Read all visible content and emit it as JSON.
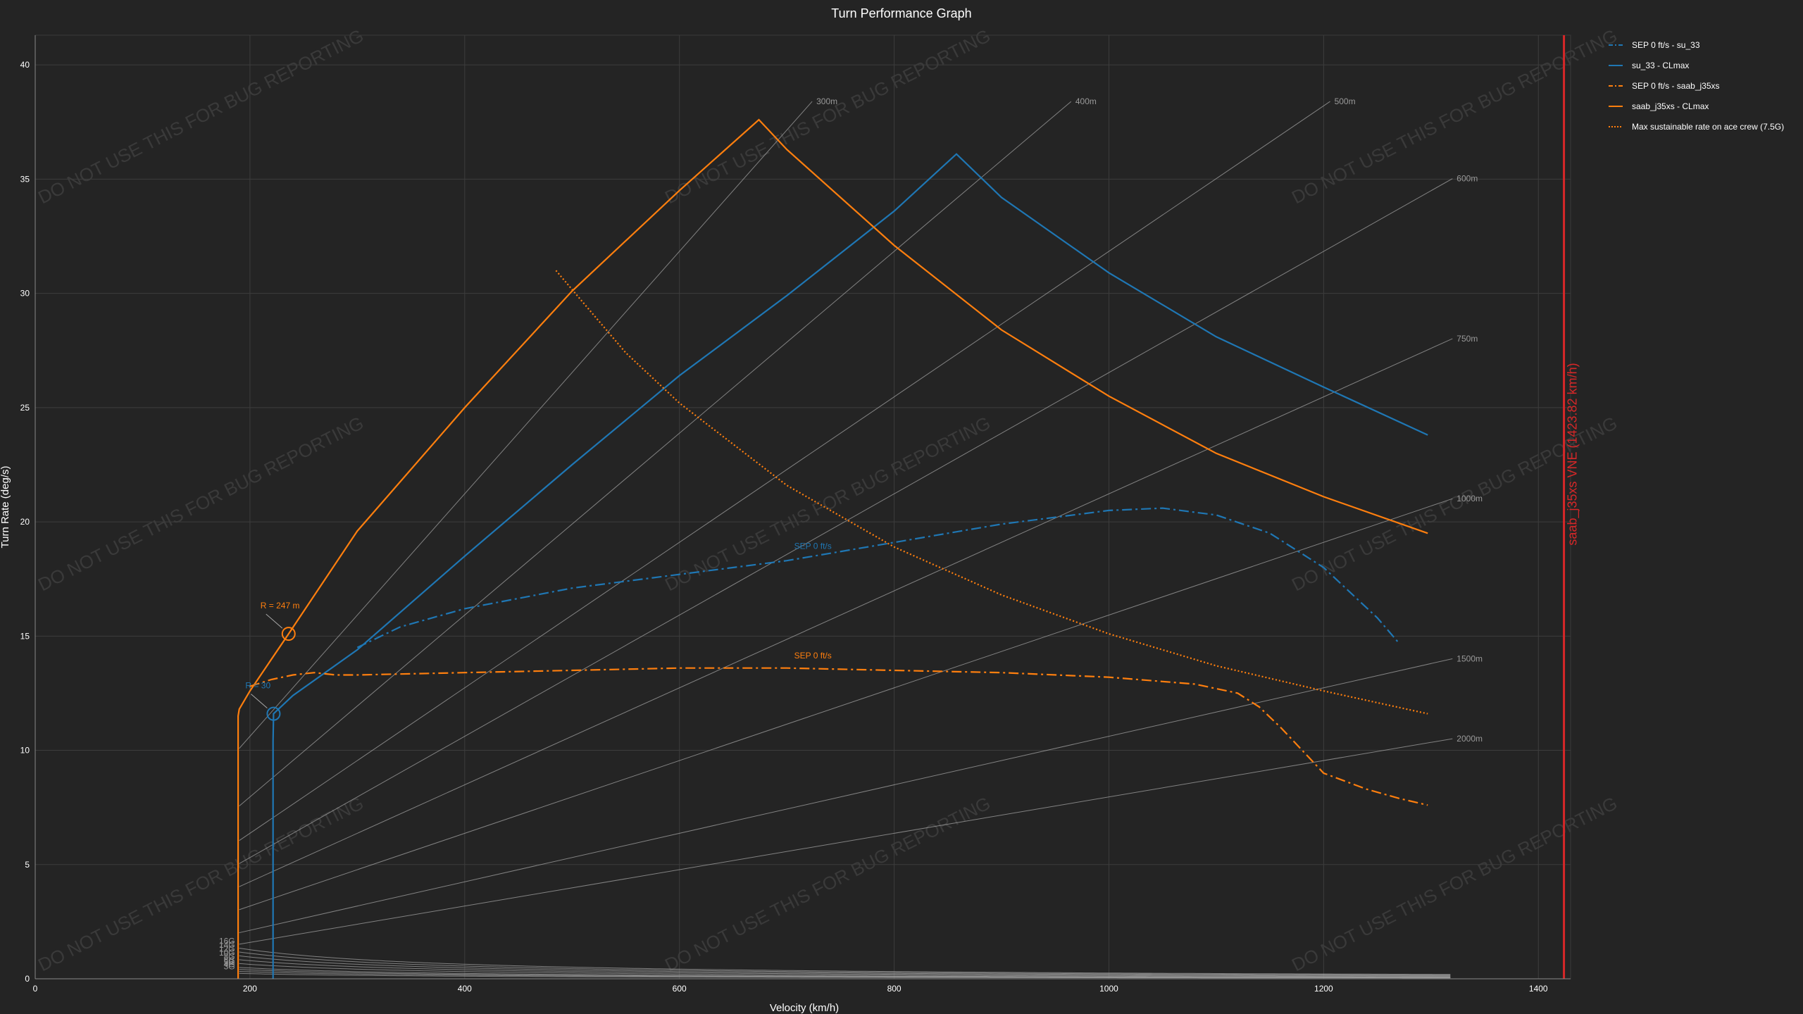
{
  "chart_data": {
    "type": "line",
    "title": "Turn Performance Graph",
    "xlabel": "Velocity (km/h)",
    "ylabel": "Turn Rate (deg/s)",
    "xlim": [
      0,
      1430
    ],
    "ylim": [
      0,
      41.3
    ],
    "xticks": [
      "0",
      "200",
      "400",
      "600",
      "800",
      "1000",
      "1200",
      "1400"
    ],
    "yticks": [
      "0",
      "5",
      "10",
      "15",
      "20",
      "25",
      "30",
      "35",
      "40"
    ],
    "grid": true,
    "legend_position": "top-right",
    "colors": {
      "su33": "#1f77b4",
      "saab": "#ff7f0e",
      "vne": "#d62728",
      "guide": "#aaaaaa"
    },
    "series": [
      {
        "name": "SEP 0 ft/s - su_33",
        "style": "dashdot",
        "color": "#1f77b4",
        "x": [
          300,
          340,
          400,
          500,
          600,
          700,
          800,
          900,
          1000,
          1050,
          1100,
          1150,
          1200,
          1250,
          1270
        ],
        "y": [
          14.5,
          15.4,
          16.2,
          17.1,
          17.7,
          18.3,
          19.1,
          19.9,
          20.5,
          20.6,
          20.3,
          19.5,
          18.0,
          15.8,
          14.7
        ]
      },
      {
        "name": "su_33 - CLmax",
        "style": "solid",
        "color": "#1f77b4",
        "x": [
          221.5,
          221.5,
          222,
          240,
          300,
          400,
          500,
          600,
          700,
          800,
          858,
          900,
          1000,
          1100,
          1200,
          1297
        ],
        "y": [
          0,
          10.4,
          11.6,
          12.4,
          14.4,
          18.5,
          22.5,
          26.4,
          29.9,
          33.6,
          36.1,
          34.2,
          30.9,
          28.1,
          25.9,
          23.8
        ]
      },
      {
        "name": "SEP 0 ft/s - saab_j35xs",
        "style": "dashdot",
        "color": "#ff7f0e",
        "x": [
          200,
          220,
          240,
          260,
          280,
          300,
          400,
          500,
          600,
          700,
          800,
          900,
          1000,
          1080,
          1120,
          1140,
          1160,
          1180,
          1200,
          1240,
          1270,
          1297
        ],
        "y": [
          12.8,
          13.1,
          13.3,
          13.4,
          13.3,
          13.3,
          13.4,
          13.5,
          13.6,
          13.6,
          13.5,
          13.4,
          13.2,
          12.9,
          12.5,
          11.9,
          11.0,
          10.0,
          9.0,
          8.3,
          7.9,
          7.6
        ]
      },
      {
        "name": "saab_j35xs - CLmax",
        "style": "solid",
        "color": "#ff7f0e",
        "x": [
          189,
          189,
          190,
          200,
          236,
          300,
          400,
          500,
          600,
          674,
          700,
          800,
          900,
          1000,
          1100,
          1200,
          1297
        ],
        "y": [
          0,
          11.5,
          11.8,
          12.6,
          15.1,
          19.6,
          25.0,
          30.1,
          34.5,
          37.6,
          36.3,
          32.1,
          28.4,
          25.5,
          23.0,
          21.1,
          19.5
        ]
      },
      {
        "name": "Max sustainable rate on ace crew (7.5G)",
        "style": "dotted",
        "color": "#ff7f0e",
        "x": [
          485,
          550,
          600,
          700,
          800,
          900,
          1000,
          1100,
          1200,
          1297
        ],
        "y": [
          31.0,
          27.4,
          25.2,
          21.6,
          18.9,
          16.8,
          15.1,
          13.7,
          12.6,
          11.6
        ]
      }
    ],
    "g_lines": [
      "3G",
      "4G",
      "5G",
      "6G",
      "8G",
      "10G",
      "12G",
      "14G",
      "16G"
    ],
    "g_values": [
      3,
      4,
      5,
      6,
      8,
      10,
      12,
      14,
      16
    ],
    "radius_lines": [
      "300m",
      "400m",
      "500m",
      "600m",
      "750m",
      "1000m",
      "1500m",
      "2000m"
    ],
    "radius_values": [
      300,
      400,
      500,
      600,
      750,
      1000,
      1500,
      2000
    ],
    "vne": {
      "x": 1423.82,
      "label": "saab_j35xs VNE (1423.82 km/h)"
    },
    "annotations": [
      {
        "text": "R = 247 m",
        "x": 236,
        "y": 15.1,
        "color": "#ff7f0e"
      },
      {
        "text": "R = 30",
        "x": 222,
        "y": 11.6,
        "color": "#1f77b4"
      },
      {
        "text": "SEP 0 ft/s",
        "x": 720,
        "y": 18.7,
        "color": "#1f77b4"
      },
      {
        "text": "SEP 0 ft/s",
        "x": 720,
        "y": 13.9,
        "color": "#ff7f0e"
      }
    ],
    "watermark": "DO NOT USE THIS FOR BUG REPORTING"
  }
}
